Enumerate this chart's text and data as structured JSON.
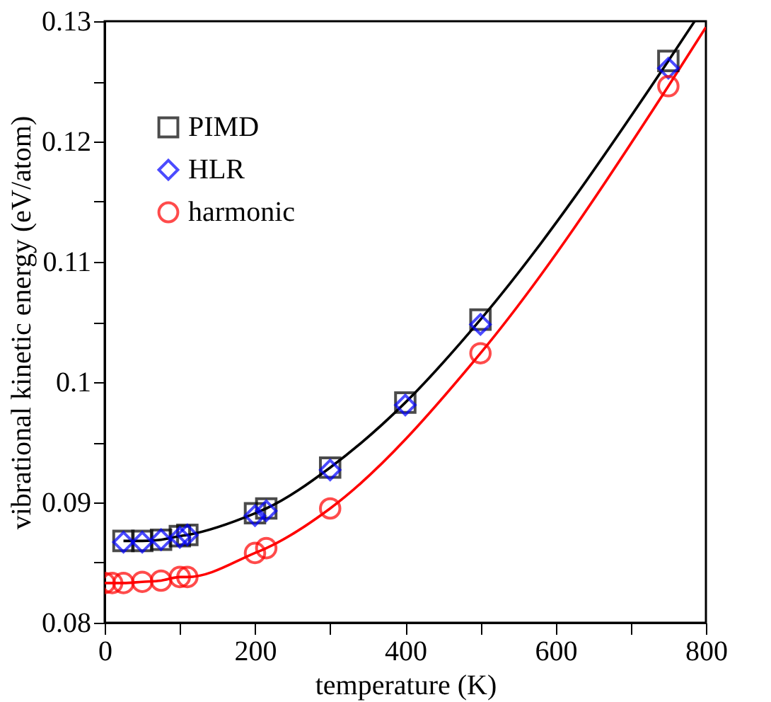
{
  "chart_data": {
    "type": "scatter",
    "xlabel": "temperature (K)",
    "ylabel": "vibrational kinetic energy (eV/atom)",
    "xlim": [
      0,
      800
    ],
    "ylim": [
      0.08,
      0.13
    ],
    "xticks": [
      0,
      {
        "value": 100,
        "label": null
      },
      200,
      {
        "value": 300,
        "label": null
      },
      400,
      {
        "value": 500,
        "label": null
      },
      600,
      {
        "value": 700,
        "label": null
      },
      800
    ],
    "yticks": [
      0.08,
      {
        "value": 0.085,
        "label": null
      },
      0.09,
      {
        "value": 0.095,
        "label": null
      },
      0.1,
      {
        "value": 0.105,
        "label": null
      },
      0.11,
      {
        "value": 0.115,
        "label": null
      },
      0.12,
      {
        "value": 0.125,
        "label": null
      },
      0.13
    ],
    "legend": "top left",
    "grid": false,
    "series": [
      {
        "type": "line",
        "color": "#000000",
        "marker": "none",
        "x": [
          25,
          50,
          75,
          100,
          110,
          200,
          215,
          300,
          400,
          500,
          750,
          785
        ],
        "values": [
          0.0868,
          0.0868,
          0.0869,
          0.0872,
          0.0873,
          0.0891,
          0.0895,
          0.0929,
          0.0983,
          0.1052,
          0.1267,
          0.13
        ]
      },
      {
        "type": "line",
        "color": "#ff0000",
        "marker": "none",
        "x": [
          0,
          10,
          25,
          50,
          75,
          100,
          110,
          200,
          215,
          300,
          500,
          750,
          800
        ],
        "values": [
          0.0833,
          0.0833,
          0.0833,
          0.0834,
          0.0835,
          0.0838,
          0.0838,
          0.0858,
          0.0862,
          0.0895,
          0.1024,
          0.1246,
          0.1295
        ]
      },
      {
        "name": "PIMD",
        "color": "#000000",
        "marker": "square",
        "x": [
          25,
          50,
          75,
          100,
          110,
          200,
          215,
          300,
          400,
          500,
          750
        ],
        "values": [
          0.0868,
          0.0868,
          0.0869,
          0.0872,
          0.0873,
          0.0891,
          0.0895,
          0.0929,
          0.0983,
          0.1052,
          0.1267
        ]
      },
      {
        "name": "HLR",
        "color": "#0000ff",
        "marker": "diamond",
        "x": [
          25,
          50,
          75,
          100,
          110,
          200,
          215,
          300,
          400,
          500,
          750
        ],
        "values": [
          0.0867,
          0.0867,
          0.0869,
          0.0871,
          0.0873,
          0.0889,
          0.0893,
          0.0927,
          0.0981,
          0.1048,
          0.1261
        ]
      },
      {
        "name": "harmonic",
        "color": "#ff0000",
        "marker": "circle",
        "x": [
          0,
          10,
          25,
          50,
          75,
          100,
          110,
          200,
          215,
          300,
          500,
          750
        ],
        "values": [
          0.0833,
          0.0833,
          0.0833,
          0.0834,
          0.0835,
          0.0838,
          0.0838,
          0.0858,
          0.0862,
          0.0895,
          0.1024,
          0.1246
        ]
      }
    ]
  }
}
